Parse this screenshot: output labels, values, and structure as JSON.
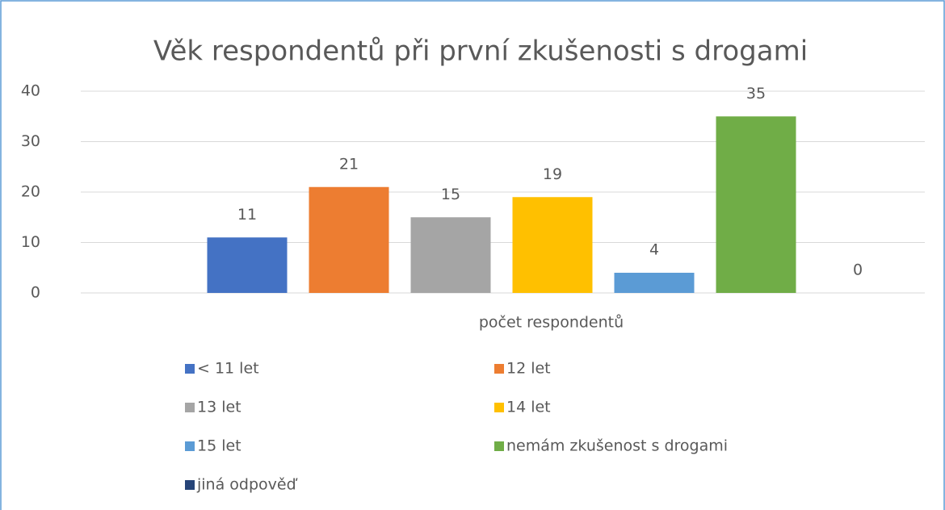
{
  "chart_data": {
    "type": "bar",
    "title": "Věk respondentů při první zkušenosti s drogami",
    "categories": [
      "počet respondentů"
    ],
    "series": [
      {
        "name": "< 11 let",
        "color": "#4472c4",
        "values": [
          11
        ]
      },
      {
        "name": "12 let",
        "color": "#ed7d31",
        "values": [
          21
        ]
      },
      {
        "name": "13 let",
        "color": "#a5a5a5",
        "values": [
          15
        ]
      },
      {
        "name": "14 let",
        "color": "#ffc000",
        "values": [
          19
        ]
      },
      {
        "name": "15 let",
        "color": "#5b9bd5",
        "values": [
          4
        ]
      },
      {
        "name": "nemám zkušenost s drogami",
        "color": "#70ad47",
        "values": [
          35
        ]
      },
      {
        "name": "jiná odpověď",
        "color": "#264478",
        "values": [
          0
        ]
      }
    ],
    "ylim": [
      0,
      40
    ],
    "yticks": [
      0,
      10,
      20,
      30,
      40
    ],
    "grid": true,
    "legend": "bottom"
  }
}
